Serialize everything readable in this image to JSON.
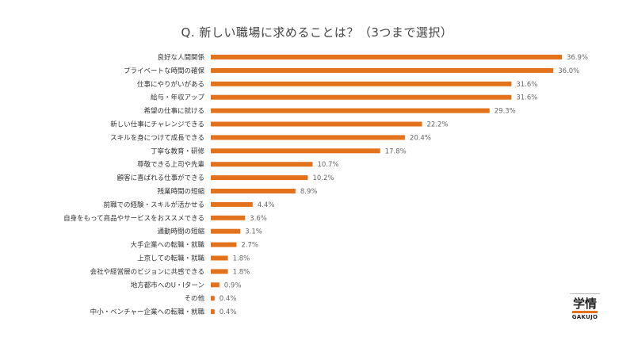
{
  "title": "Q.  新しい職場に求めることは？（3つまで選択）",
  "logo": {
    "mark": "学情",
    "sub": "GAKUJO"
  },
  "colors": {
    "bar": "#e2731c",
    "label": "#333333",
    "value": "#666666"
  },
  "chart_data": {
    "type": "bar",
    "orientation": "horizontal",
    "title": "Q.  新しい職場に求めることは？（3つまで選択）",
    "unit": "%",
    "xlim": [
      0,
      40
    ],
    "grid": false,
    "categories": [
      "良好な人間関係",
      "プライベートな時間の確保",
      "仕事にやりがいがある",
      "給与・年収アップ",
      "希望の仕事に就ける",
      "新しい仕事にチャレンジできる",
      "スキルを身につけて成長できる",
      "丁寧な教育・研修",
      "尊敬できる上司や先輩",
      "顧客に喜ばれる仕事ができる",
      "残業時間の短縮",
      "前職での経験・スキルが活かせる",
      "自身をもって商品やサービスをおススメできる",
      "通勤時間の短縮",
      "大手企業への転職・就職",
      "上京しての転職・就職",
      "会社や経営層のビジョンに共感できる",
      "地方都市へのU・Iターン",
      "その他",
      "中小・ベンチャー企業への転職・就職"
    ],
    "values": [
      36.9,
      36.0,
      31.6,
      31.6,
      29.3,
      22.2,
      20.4,
      17.8,
      10.7,
      10.2,
      8.9,
      4.4,
      3.6,
      3.1,
      2.7,
      1.8,
      1.8,
      0.9,
      0.4,
      0.4
    ],
    "value_labels": [
      "36.9%",
      "36.0%",
      "31.6%",
      "31.6%",
      "29.3%",
      "22.2%",
      "20.4%",
      "17.8%",
      "10.7%",
      "10.2%",
      "8.9%",
      "4.4%",
      "3.6%",
      "3.1%",
      "2.7%",
      "1.8%",
      "1.8%",
      "0.9%",
      "0.4%",
      "0.4%"
    ]
  }
}
